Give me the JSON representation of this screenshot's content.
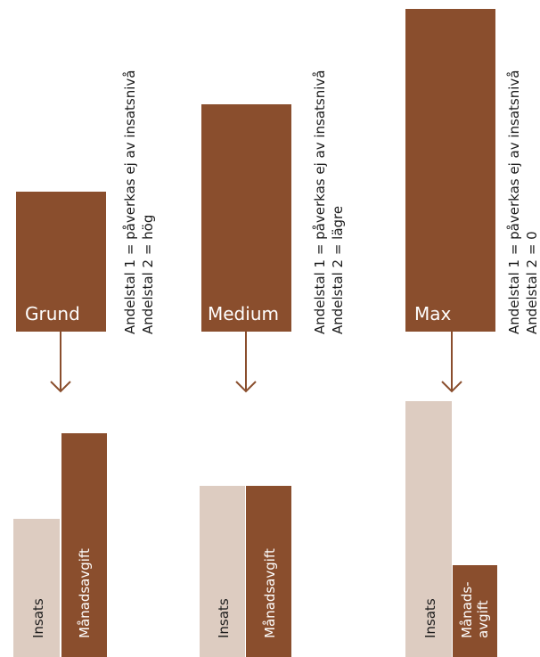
{
  "colors": {
    "brown": "#8a4e2d",
    "beige": "#ddccc1",
    "text": "#1c1c1c",
    "arrow": "#8a4e2d"
  },
  "tiers": [
    {
      "name": "Grund",
      "note_line1": "Andelstal 1 = påverkas ej av insatsnivå",
      "note_line2": "Andelstal 2 = hög",
      "bars": {
        "insats_label": "Insats",
        "manadsavgift_label": "Månadsavgift"
      }
    },
    {
      "name": "Medium",
      "note_line1": "Andelstal 1 = påverkas ej av insatsnivå",
      "note_line2": "Andelstal 2 = lägre",
      "bars": {
        "insats_label": "Insats",
        "manadsavgift_label": "Månadsavgift"
      }
    },
    {
      "name": "Max",
      "note_line1": "Andelstal 1 = påverkas ej av insatsnivå",
      "note_line2": "Andelstal 2 = 0",
      "bars": {
        "insats_label": "Insats",
        "manadsavgift_label_line1": "Månads-",
        "manadsavgift_label_line2": "avgift"
      }
    }
  ]
}
